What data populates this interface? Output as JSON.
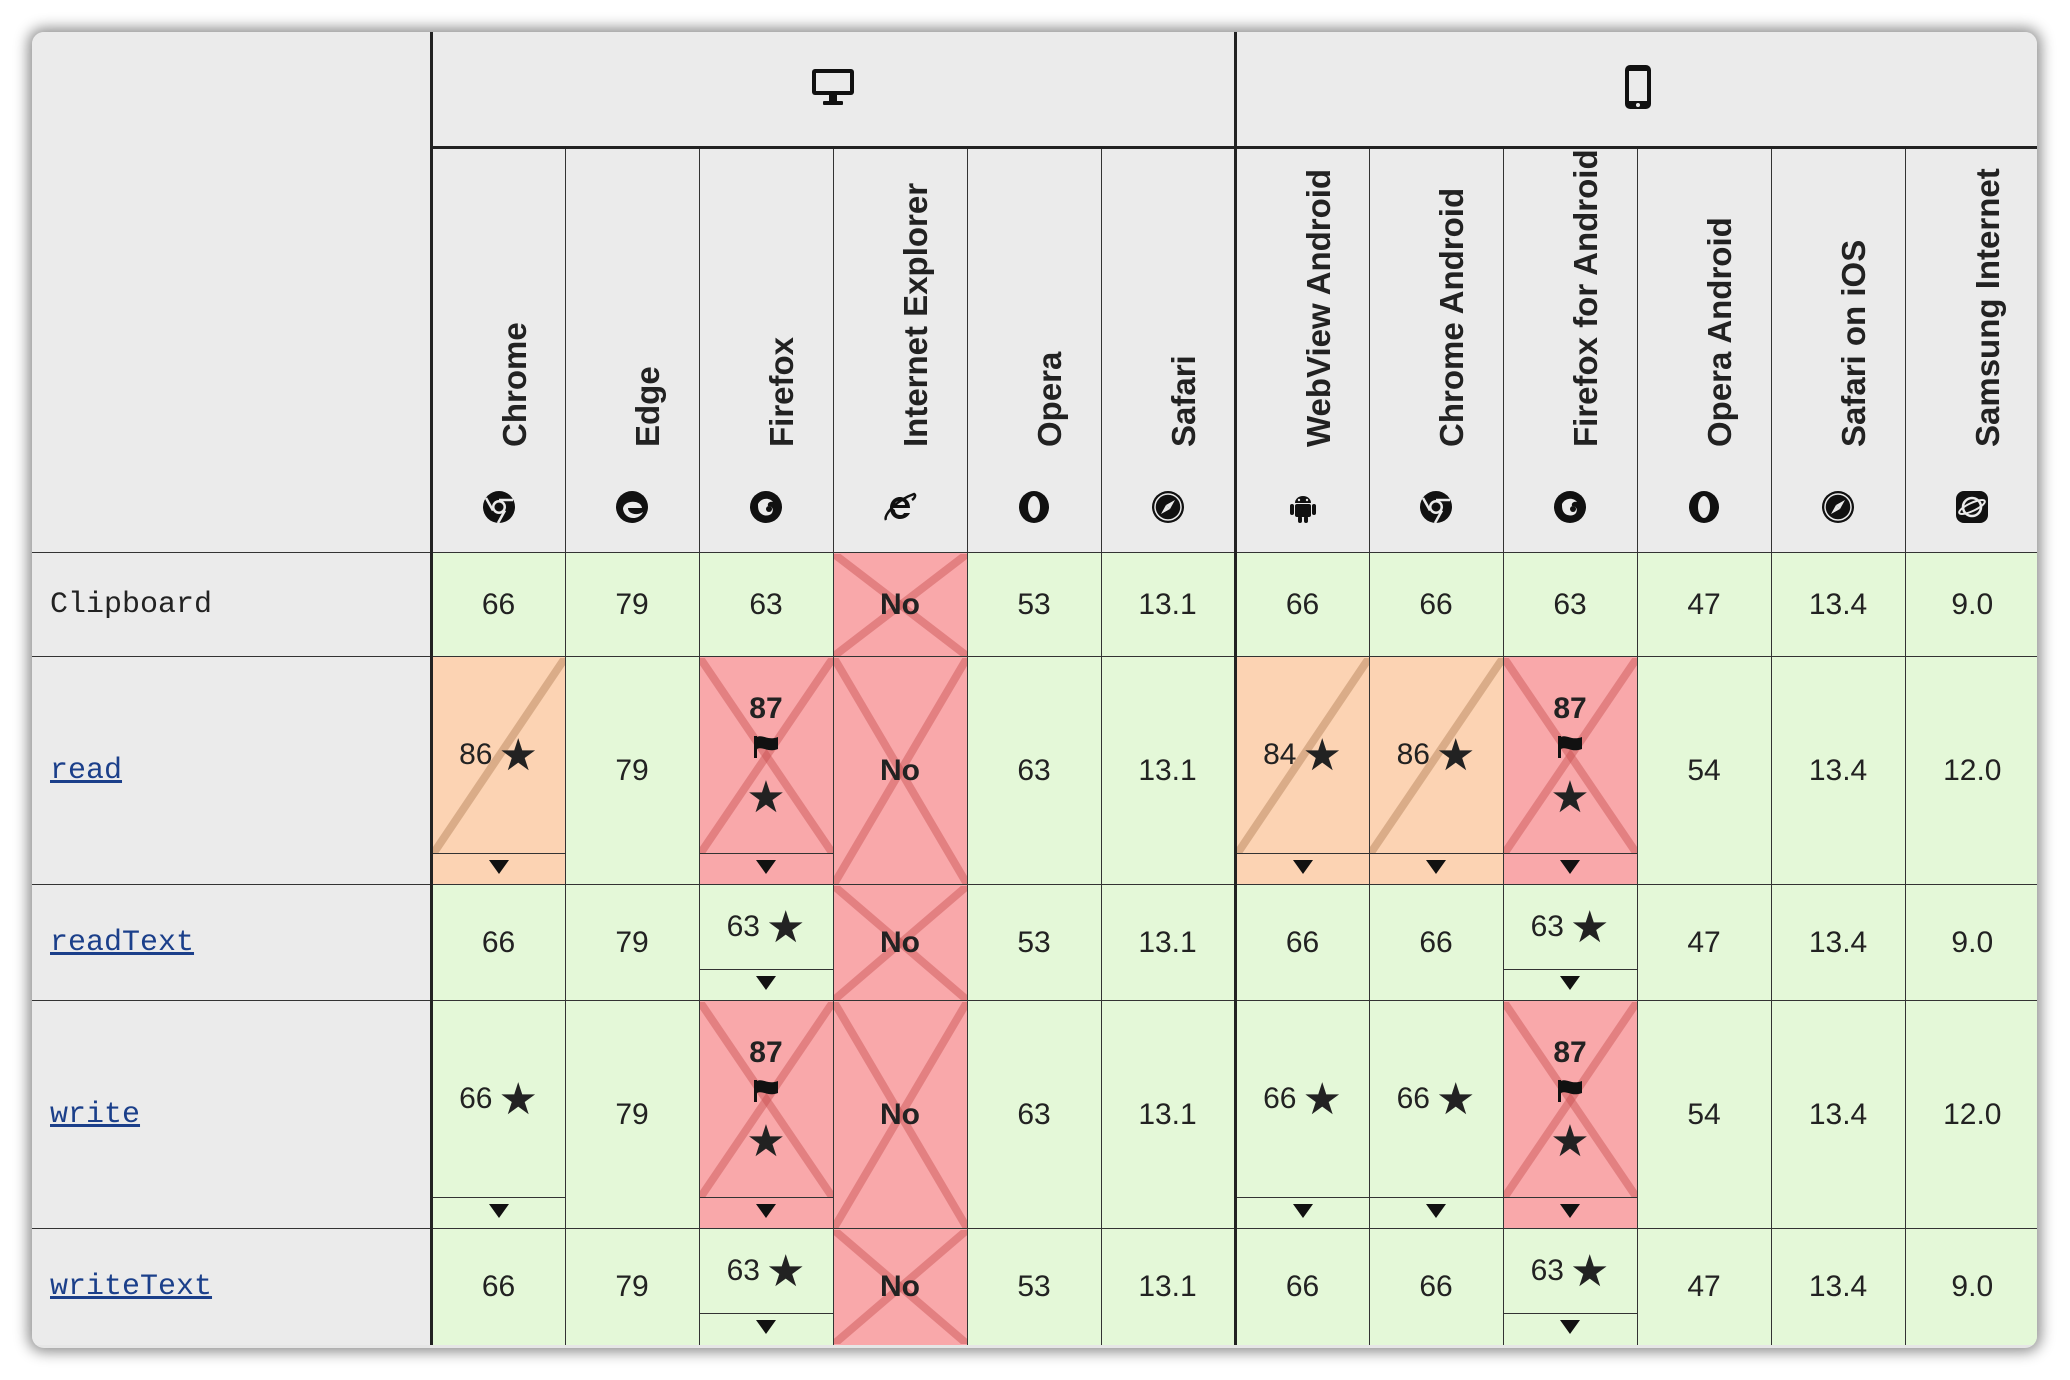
{
  "platforms": {
    "desktop_icon": "desktop-monitor-icon",
    "mobile_icon": "mobile-phone-icon"
  },
  "browsers": [
    {
      "name": "Chrome",
      "icon": "chrome-icon"
    },
    {
      "name": "Edge",
      "icon": "edge-icon"
    },
    {
      "name": "Firefox",
      "icon": "firefox-icon"
    },
    {
      "name": "Internet Explorer",
      "icon": "internet-explorer-icon"
    },
    {
      "name": "Opera",
      "icon": "opera-icon"
    },
    {
      "name": "Safari",
      "icon": "safari-icon"
    },
    {
      "name": "WebView Android",
      "icon": "android-icon"
    },
    {
      "name": "Chrome Android",
      "icon": "chrome-icon"
    },
    {
      "name": "Firefox for Android",
      "icon": "firefox-icon"
    },
    {
      "name": "Opera Android",
      "icon": "opera-icon"
    },
    {
      "name": "Safari on iOS",
      "icon": "safari-icon"
    },
    {
      "name": "Samsung Internet",
      "icon": "samsung-internet-icon"
    }
  ],
  "rows": [
    {
      "feature": "Clipboard",
      "link": false,
      "cells": [
        "66",
        "79",
        "63",
        "No",
        "53",
        "13.1",
        "66",
        "66",
        "63",
        "47",
        "13.4",
        "9.0"
      ]
    },
    {
      "feature": "read",
      "link": true,
      "cells": [
        "86",
        "79",
        "87",
        "No",
        "63",
        "13.1",
        "84",
        "86",
        "87",
        "54",
        "13.4",
        "12.0"
      ]
    },
    {
      "feature": "readText",
      "link": true,
      "cells": [
        "66",
        "79",
        "63",
        "No",
        "53",
        "13.1",
        "66",
        "66",
        "63",
        "47",
        "13.4",
        "9.0"
      ]
    },
    {
      "feature": "write",
      "link": true,
      "cells": [
        "66",
        "79",
        "87",
        "No",
        "63",
        "13.1",
        "66",
        "66",
        "87",
        "54",
        "13.4",
        "12.0"
      ]
    },
    {
      "feature": "writeText",
      "link": true,
      "cells": [
        "66",
        "79",
        "63",
        "No",
        "53",
        "13.1",
        "66",
        "66",
        "63",
        "47",
        "13.4",
        "9.0"
      ]
    }
  ],
  "colors": {
    "full_support": "#e4f8d8",
    "no_support": "#f9a8aa",
    "partial_support": "#fcd3b3",
    "link": "#1b3f8a"
  }
}
